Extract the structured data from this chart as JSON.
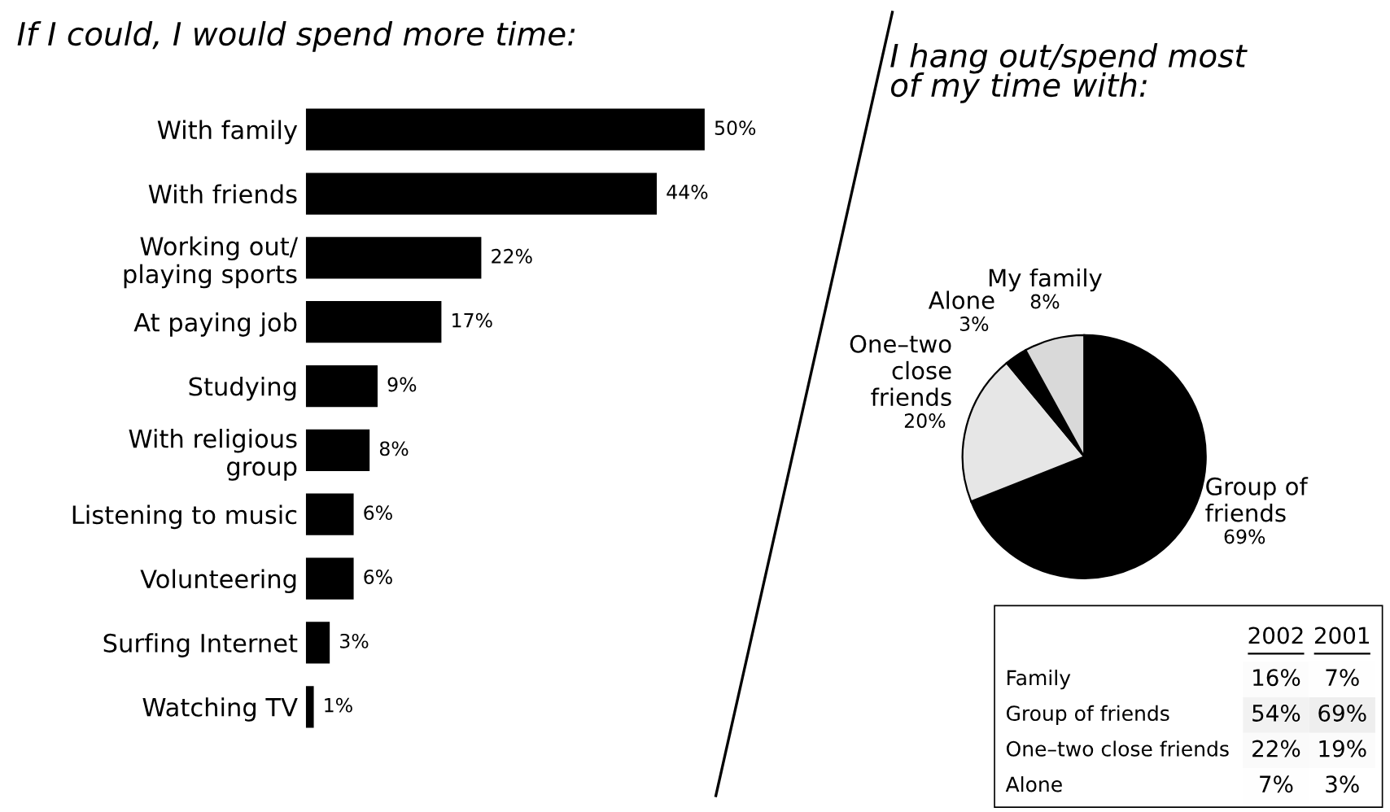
{
  "chart_data": [
    {
      "type": "bar",
      "orientation": "horizontal",
      "title": "If I could, I would spend more time:",
      "categories": [
        "With family",
        "With friends",
        "Working out/\nplaying sports",
        "At paying job",
        "Studying",
        "With religious\ngroup",
        "Listening to music",
        "Volunteering",
        "Surfing Internet",
        "Watching TV"
      ],
      "values": [
        50,
        44,
        22,
        17,
        9,
        8,
        6,
        6,
        3,
        1
      ],
      "value_labels": [
        "50%",
        "44%",
        "22%",
        "17%",
        "9%",
        "8%",
        "6%",
        "6%",
        "3%",
        "1%"
      ],
      "color": "#000000",
      "tick_labels": "y",
      "grid": false,
      "legend": false
    },
    {
      "type": "pie",
      "title": "I hang out/spend most\nof my time with:",
      "categories": [
        "Group of\nfriends",
        "One–two\nclose\nfriends",
        "Alone",
        "My family"
      ],
      "values": [
        69,
        20,
        3,
        8
      ],
      "value_labels": [
        "69%",
        "20%",
        "3%",
        "8%"
      ],
      "colors": [
        "#000000",
        "#e6e6e6",
        "#000000",
        "#d9d9d9"
      ],
      "legend": false
    },
    {
      "type": "heatmap",
      "categories": [
        "2002",
        "2001"
      ],
      "y_categories": [
        "Family",
        "Group of friends",
        "One–two close friends",
        "Alone"
      ],
      "cells": [
        [
          16,
          7
        ],
        [
          54,
          69
        ],
        [
          22,
          19
        ],
        [
          7,
          3
        ]
      ],
      "cell_labels": [
        [
          "16%",
          "7%"
        ],
        [
          "54%",
          "69%"
        ],
        [
          "22%",
          "19%"
        ],
        [
          "7%",
          "3%"
        ]
      ]
    }
  ]
}
